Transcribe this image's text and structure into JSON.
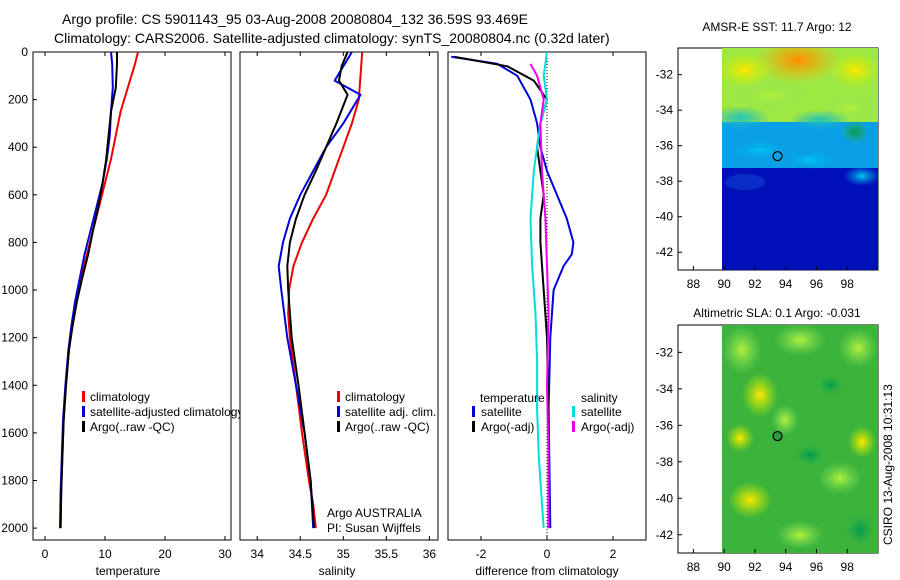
{
  "header": {
    "title_line1": "Argo profile: CS 5901143_95 03-Aug-2008 20080804_132 36.59S 93.469E",
    "title_line2": "Climatology: CARS2006. Satellite-adjusted climatology: synTS_20080804.nc (0.32d later)"
  },
  "chart_data": [
    {
      "id": "temperature",
      "type": "line",
      "xlabel": "temperature",
      "xlim": [
        -2,
        31
      ],
      "xticks": [
        "0",
        "10",
        "20",
        "30"
      ],
      "ylim": [
        0,
        2050
      ],
      "y_reversed": true,
      "yticks": [
        "0",
        "200",
        "400",
        "600",
        "800",
        "1000",
        "1200",
        "1400",
        "1600",
        "1800",
        "2000"
      ],
      "legend": [
        "climatology",
        "satellite-adjusted climatology",
        "Argo(..raw -QC)"
      ],
      "series": [
        {
          "name": "climatology",
          "color": "#ee0000",
          "x": [
            15.5,
            15.0,
            13.8,
            12.6,
            11.8,
            11.0,
            10.0,
            9.0,
            8.0,
            7.0,
            6.0,
            5.2,
            4.5,
            4.0,
            3.5,
            3.1,
            2.9,
            2.7,
            2.6
          ],
          "y": [
            0,
            50,
            150,
            250,
            350,
            450,
            550,
            650,
            750,
            850,
            950,
            1050,
            1150,
            1250,
            1400,
            1550,
            1700,
            1850,
            2000
          ]
        },
        {
          "name": "satellite-adjusted climatology",
          "color": "#0000dd",
          "x": [
            11.0,
            11.2,
            11.3,
            11.0,
            10.8,
            10.3,
            9.6,
            8.6,
            7.6,
            6.6,
            5.8,
            5.0,
            4.4,
            3.9,
            3.4,
            3.0,
            2.8,
            2.6,
            2.5
          ],
          "y": [
            0,
            50,
            150,
            250,
            350,
            450,
            550,
            650,
            750,
            850,
            950,
            1050,
            1150,
            1250,
            1400,
            1550,
            1700,
            1850,
            2000
          ]
        },
        {
          "name": "Argo(..raw -QC)",
          "color": "#000000",
          "x": [
            12.0,
            12.0,
            11.8,
            11.0,
            10.6,
            10.2,
            9.6,
            8.9,
            8.0,
            7.2,
            6.2,
            5.3,
            4.6,
            4.0,
            3.5,
            3.1,
            2.9,
            2.7,
            2.6
          ],
          "y": [
            0,
            50,
            150,
            250,
            350,
            450,
            550,
            650,
            750,
            850,
            950,
            1050,
            1150,
            1250,
            1400,
            1550,
            1700,
            1850,
            2000
          ]
        }
      ]
    },
    {
      "id": "salinity",
      "type": "line",
      "xlabel": "salinity",
      "xlim": [
        33.8,
        36.1
      ],
      "xticks": [
        "34",
        "34.5",
        "35",
        "35.5",
        "36"
      ],
      "ylim": [
        0,
        2050
      ],
      "y_reversed": true,
      "legend": [
        "climatology",
        "satellite adj. clim.",
        "Argo(..raw -QC)"
      ],
      "annotation": [
        "Argo AUSTRALIA",
        "PI: Susan Wijffels"
      ],
      "series": [
        {
          "name": "climatology",
          "color": "#ee0000",
          "x": [
            35.22,
            35.2,
            35.18,
            35.1,
            35.0,
            34.9,
            34.8,
            34.65,
            34.52,
            34.42,
            34.37,
            34.36,
            34.38,
            34.45,
            34.52,
            34.6,
            34.65,
            34.68
          ],
          "y": [
            0,
            100,
            200,
            300,
            400,
            500,
            600,
            700,
            800,
            900,
            1000,
            1100,
            1200,
            1400,
            1600,
            1800,
            1900,
            2000
          ]
        },
        {
          "name": "satellite adj. clim.",
          "color": "#0000dd",
          "x": [
            35.1,
            35.0,
            34.9,
            35.2,
            35.0,
            34.8,
            34.65,
            34.5,
            34.38,
            34.3,
            34.25,
            34.28,
            34.35,
            34.45,
            34.55,
            34.62,
            34.65
          ],
          "y": [
            0,
            60,
            120,
            180,
            300,
            400,
            500,
            600,
            700,
            800,
            900,
            1000,
            1200,
            1400,
            1600,
            1800,
            2000
          ]
        },
        {
          "name": "Argo(..raw -QC)",
          "color": "#000000",
          "x": [
            35.05,
            34.98,
            34.95,
            35.05,
            34.92,
            34.8,
            34.68,
            34.55,
            34.45,
            34.38,
            34.35,
            34.36,
            34.4,
            34.48,
            34.55,
            34.62,
            34.66
          ],
          "y": [
            0,
            60,
            120,
            180,
            300,
            400,
            500,
            600,
            700,
            800,
            900,
            1000,
            1200,
            1400,
            1600,
            1800,
            2000
          ]
        }
      ]
    },
    {
      "id": "difference",
      "type": "line",
      "xlabel": "difference from climatology",
      "xlim": [
        -3,
        3
      ],
      "xticks": [
        "-2",
        "0",
        "2"
      ],
      "ylim": [
        0,
        2050
      ],
      "y_reversed": true,
      "zero_line": true,
      "legend_headers": [
        "temperature",
        "salinity"
      ],
      "legend": [
        "satellite",
        "Argo(-adj)",
        "satellite",
        "Argo(-adj)"
      ],
      "series": [
        {
          "name": "temperature satellite",
          "color": "#0000dd",
          "x": [
            -2.9,
            -1.5,
            -0.9,
            -0.5,
            -0.3,
            -0.2,
            0.0,
            0.3,
            0.6,
            0.8,
            0.75,
            0.5,
            0.2,
            0.1,
            0.05,
            0.1
          ],
          "y": [
            20,
            50,
            100,
            200,
            300,
            400,
            500,
            600,
            700,
            800,
            850,
            900,
            1000,
            1200,
            1500,
            2000
          ]
        },
        {
          "name": "temperature Argo(-adj)",
          "color": "#000000",
          "x": [
            -2.8,
            -1.2,
            -0.4,
            0.0,
            -0.2,
            -0.3,
            -0.2,
            -0.1,
            -0.2,
            -0.2,
            -0.1,
            0.0,
            0.05,
            0.05
          ],
          "y": [
            20,
            60,
            120,
            200,
            300,
            400,
            500,
            600,
            700,
            800,
            1000,
            1200,
            1600,
            2000
          ]
        },
        {
          "name": "salinity satellite",
          "color": "#00dddd",
          "x": [
            0.0,
            -0.1,
            0.0,
            -0.2,
            -0.4,
            -0.5,
            -0.45,
            -0.35,
            -0.3,
            -0.3,
            -0.25,
            -0.15,
            -0.1
          ],
          "y": [
            0,
            100,
            200,
            300,
            500,
            700,
            900,
            1100,
            1300,
            1500,
            1700,
            1900,
            2000
          ]
        },
        {
          "name": "salinity Argo(-adj)",
          "color": "#ee00ee",
          "x": [
            -0.5,
            -0.3,
            -0.1,
            -0.2,
            -0.15,
            -0.05,
            0.0,
            0.05,
            0.0,
            0.05,
            0.05
          ],
          "y": [
            50,
            100,
            200,
            300,
            500,
            700,
            900,
            1100,
            1400,
            1700,
            2000
          ]
        }
      ]
    },
    {
      "id": "sst-map",
      "type": "heatmap",
      "title": "AMSR-E SST: 11.7 Argo: 12",
      "xticks": [
        "88",
        "90",
        "92",
        "94",
        "96",
        "98"
      ],
      "yticks": [
        "-32",
        "-34",
        "-36",
        "-38",
        "-40",
        "-42"
      ],
      "xlim": [
        87,
        100
      ],
      "ylim": [
        -43,
        -30.5
      ],
      "data_xlim": [
        90,
        100
      ],
      "marker": {
        "lon": 93.469,
        "lat": -36.59
      }
    },
    {
      "id": "sla-map",
      "type": "heatmap",
      "title": "Altimetric SLA: 0.1 Argo: -0.031",
      "xticks": [
        "88",
        "90",
        "92",
        "94",
        "96",
        "98"
      ],
      "yticks": [
        "-32",
        "-34",
        "-36",
        "-38",
        "-40",
        "-42"
      ],
      "xlim": [
        87,
        100
      ],
      "ylim": [
        -43,
        -30.5
      ],
      "data_xlim": [
        90,
        100
      ],
      "marker": {
        "lon": 93.469,
        "lat": -36.59
      }
    }
  ],
  "side_label": "CSIRO 13-Aug-2008 10:31:13"
}
